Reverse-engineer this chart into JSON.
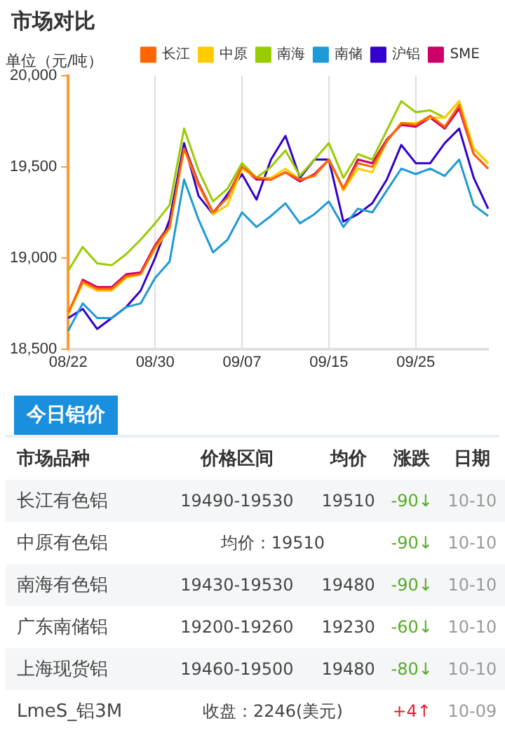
{
  "chart_data": [
    {
      "type": "line",
      "title": "市场对比",
      "ylabel": "单位（元/吨）",
      "categories": [
        "08/22",
        null,
        null,
        null,
        null,
        null,
        "08/30",
        null,
        null,
        null,
        null,
        null,
        "09/07",
        null,
        null,
        null,
        null,
        null,
        "09/15",
        null,
        null,
        null,
        null,
        null,
        "09/25",
        null,
        null,
        null,
        null,
        null
      ],
      "series": [
        {
          "name": "长江",
          "color": "#ff6600",
          "values": [
            18700,
            18870,
            18830,
            18830,
            18900,
            18910,
            19060,
            19170,
            19600,
            19400,
            19250,
            19330,
            19500,
            19440,
            19430,
            19470,
            19430,
            19450,
            19540,
            19380,
            19520,
            19500,
            19640,
            19740,
            19730,
            19780,
            19720,
            19840,
            19570,
            19490
          ]
        },
        {
          "name": "中原",
          "color": "#ffcc00",
          "values": [
            18690,
            18860,
            18820,
            18820,
            18890,
            18910,
            19050,
            19160,
            19600,
            19400,
            19240,
            19290,
            19490,
            19440,
            19440,
            19490,
            19430,
            19450,
            19540,
            19370,
            19490,
            19470,
            19640,
            19740,
            19740,
            19770,
            19770,
            19860,
            19600,
            19520
          ]
        },
        {
          "name": "南海",
          "color": "#99cc00",
          "values": [
            18930,
            19060,
            18970,
            18960,
            19020,
            19100,
            19190,
            19290,
            19710,
            19480,
            19310,
            19380,
            19520,
            19440,
            19500,
            19590,
            19450,
            19540,
            19630,
            19440,
            19570,
            19540,
            19700,
            19860,
            19800,
            19810,
            19770,
            19860,
            19600,
            19520
          ]
        },
        {
          "name": "南储",
          "color": "#1e9ad6",
          "values": [
            18600,
            18750,
            18670,
            18670,
            18730,
            18750,
            18890,
            18980,
            19430,
            19210,
            19030,
            19100,
            19250,
            19170,
            19230,
            19300,
            19190,
            19240,
            19310,
            19170,
            19270,
            19250,
            19370,
            19490,
            19460,
            19490,
            19450,
            19540,
            19290,
            19230
          ]
        },
        {
          "name": "沪铝",
          "color": "#3300cc",
          "values": [
            18670,
            18720,
            18610,
            18670,
            18730,
            18820,
            19000,
            19210,
            19630,
            19340,
            19240,
            19350,
            19460,
            19320,
            19540,
            19670,
            19440,
            19540,
            19540,
            19200,
            19240,
            19300,
            19430,
            19620,
            19520,
            19520,
            19630,
            19710,
            19440,
            19270
          ]
        },
        {
          "name": "SME",
          "color": "#cc0066",
          "values": [
            18690,
            18880,
            18840,
            18840,
            18910,
            18920,
            19070,
            19180,
            19620,
            19410,
            19250,
            19340,
            19500,
            19430,
            19430,
            19470,
            19420,
            19460,
            19540,
            19380,
            19540,
            19520,
            19650,
            19730,
            19720,
            19770,
            19710,
            19820,
            19570,
            19490
          ]
        }
      ],
      "ylim": [
        18500,
        20000
      ],
      "yticks": [
        {
          "value": 18500,
          "label": "18,500"
        },
        {
          "value": 19000,
          "label": "19,000"
        },
        {
          "value": 19500,
          "label": "19,500"
        },
        {
          "value": 20000,
          "label": "20,000"
        }
      ],
      "grid": "x",
      "legend": "top right",
      "marker": "none",
      "line_style": "solid"
    },
    {
      "type": "other",
      "title": "今日铝价",
      "categories": [
        "市场品种",
        "价格区间",
        "均价",
        "涨跌",
        "日期"
      ],
      "y_categories": [
        "长江有色铝",
        "中原有色铝",
        "南海有色铝",
        "广东南储铝",
        "上海现货铝",
        "LmeS_铝3M"
      ],
      "cell_labels": [
        [
          "19490-19530",
          "19510",
          "-90↓",
          "10-10"
        ],
        [
          "均价：19510",
          null,
          "-90↓",
          "10-10"
        ],
        [
          "19430-19530",
          "19480",
          "-90↓",
          "10-10"
        ],
        [
          "19200-19260",
          "19230",
          "-60↓",
          "10-10"
        ],
        [
          "19460-19500",
          "19480",
          "-80↓",
          "10-10"
        ],
        [
          "收盘：2246(美元)",
          null,
          "+4↑",
          "10-09"
        ]
      ],
      "colors": [
        "#55aa22",
        "#55aa22",
        "#55aa22",
        "#55aa22",
        "#55aa22",
        "#dd2233"
      ]
    }
  ]
}
